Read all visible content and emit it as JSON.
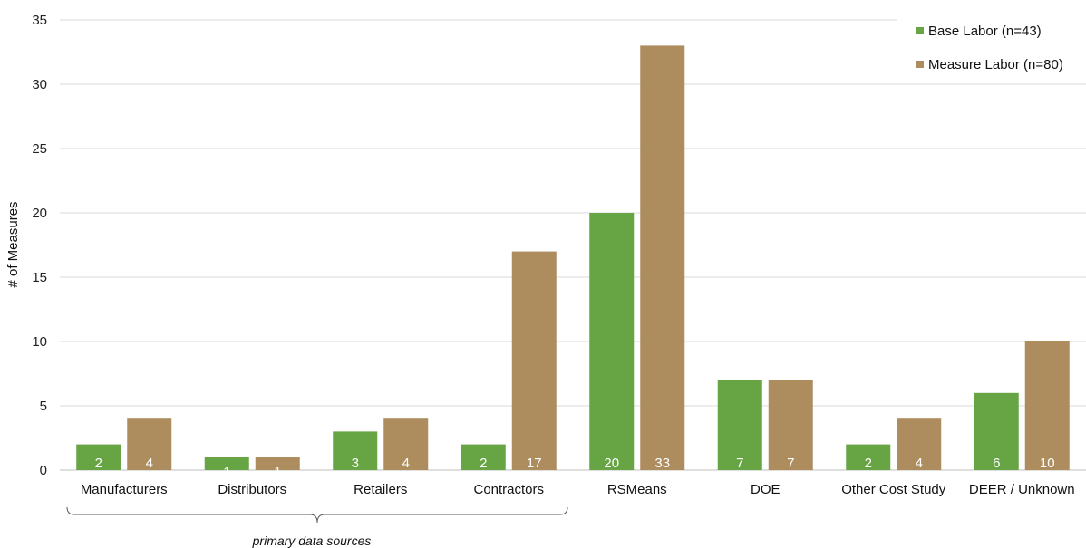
{
  "chart_data": {
    "type": "bar",
    "ylabel": "# of Measures",
    "xlabel": "",
    "ylim": [
      0,
      35
    ],
    "yticks": [
      0,
      5,
      10,
      15,
      20,
      25,
      30,
      35
    ],
    "grid": true,
    "legend_position": "top-right",
    "categories": [
      "Manufacturers",
      "Distributors",
      "Retailers",
      "Contractors",
      "RSMeans",
      "DOE",
      "Other Cost Study",
      "DEER / Unknown"
    ],
    "series": [
      {
        "name": "Base Labor (n=43)",
        "color": "#66a444",
        "values": [
          2,
          1,
          3,
          2,
          20,
          7,
          2,
          6
        ]
      },
      {
        "name": "Measure Labor (n=80)",
        "color": "#ad8c5e",
        "values": [
          4,
          1,
          4,
          17,
          33,
          7,
          4,
          10
        ]
      }
    ],
    "annotation": {
      "text": "primary data sources",
      "spans_categories": [
        "Manufacturers",
        "Distributors",
        "Retailers",
        "Contractors"
      ]
    }
  }
}
